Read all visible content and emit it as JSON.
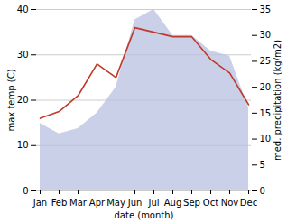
{
  "chart_data": {
    "type": "line",
    "categories": [
      "Jan",
      "Feb",
      "Mar",
      "Apr",
      "May",
      "Jun",
      "Jul",
      "Aug",
      "Sep",
      "Oct",
      "Nov",
      "Dec"
    ],
    "xlabel": "date (month)",
    "ylabel": "max temp (C)",
    "y2label": "med. precipitation (kg/m2)",
    "series": [
      {
        "type": "area",
        "axis": "y2",
        "color": "#b8c0e0",
        "values": [
          13,
          11,
          12,
          15,
          20,
          33,
          35,
          30,
          30,
          27,
          26,
          16
        ]
      },
      {
        "type": "line",
        "color": "#c0392b",
        "values": [
          16,
          17.5,
          21,
          28,
          25,
          36,
          35,
          34,
          34,
          29,
          26,
          19
        ]
      }
    ],
    "ylim": [
      0,
      40
    ],
    "yticks": [
      0,
      10,
      20,
      30,
      40
    ],
    "y2lim": [
      0,
      35
    ],
    "y2ticks": [
      0,
      5,
      10,
      15,
      20,
      25,
      30,
      35
    ],
    "grid": true
  }
}
